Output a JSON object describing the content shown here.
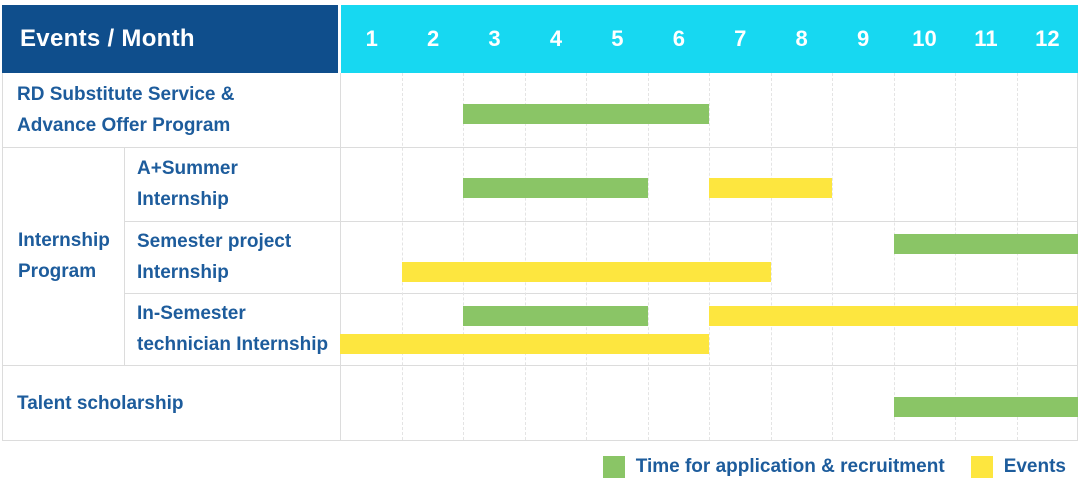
{
  "colors": {
    "header_bg": "#0f4e8c",
    "months_bg": "#17d8f1",
    "header_text": "#ffffff",
    "label_text": "#1d5c9c",
    "green": "#8ac566",
    "yellow": "#fde63f",
    "grid": "#e4e4e4",
    "border": "#dcdcdc"
  },
  "header": {
    "title": "Events / Month",
    "months": [
      "1",
      "2",
      "3",
      "4",
      "5",
      "6",
      "7",
      "8",
      "9",
      "10",
      "11",
      "12"
    ]
  },
  "group": {
    "label": "Internship\nProgram"
  },
  "rows": [
    {
      "label": "RD Substitute Service &\nAdvance Offer Program"
    },
    {
      "label": "A+Summer\nInternship"
    },
    {
      "label": "Semester project\nInternship"
    },
    {
      "label": "In-Semester\ntechnician Internship"
    },
    {
      "label": "Talent scholarship"
    }
  ],
  "legend": {
    "items": [
      {
        "label": "Time for application & recruitment",
        "color": "#8ac566"
      },
      {
        "label": "Events",
        "color": "#fde63f"
      }
    ]
  },
  "chart_data": {
    "type": "bar",
    "subtype": "gantt",
    "title": "Events / Month",
    "xlabel": "Month",
    "x_ticks": [
      1,
      2,
      3,
      4,
      5,
      6,
      7,
      8,
      9,
      10,
      11,
      12
    ],
    "x_range": [
      1,
      12
    ],
    "grid": "vertical-dashed",
    "legend_position": "bottom-right",
    "series_names": [
      "Time for application & recruitment",
      "Events"
    ],
    "rows": [
      {
        "event": "RD Substitute Service & Advance Offer Program",
        "group": null,
        "bars": [
          {
            "series": "Time for application & recruitment",
            "start_month": 3,
            "end_month": 6,
            "lane": 1
          }
        ]
      },
      {
        "event": "A+Summer Internship",
        "group": "Internship Program",
        "bars": [
          {
            "series": "Time for application & recruitment",
            "start_month": 3,
            "end_month": 5,
            "lane": 1
          },
          {
            "series": "Events",
            "start_month": 7,
            "end_month": 8,
            "lane": 1
          }
        ]
      },
      {
        "event": "Semester project Internship",
        "group": "Internship Program",
        "bars": [
          {
            "series": "Time for application & recruitment",
            "start_month": 10,
            "end_month": 12,
            "lane": 1
          },
          {
            "series": "Events",
            "start_month": 2,
            "end_month": 7,
            "lane": 2
          }
        ]
      },
      {
        "event": "In-Semester technician Internship",
        "group": "Internship Program",
        "bars": [
          {
            "series": "Time for application & recruitment",
            "start_month": 3,
            "end_month": 5,
            "lane": 1
          },
          {
            "series": "Events",
            "start_month": 7,
            "end_month": 12,
            "lane": 1
          },
          {
            "series": "Events",
            "start_month": 1,
            "end_month": 6,
            "lane": 2
          }
        ]
      },
      {
        "event": "Talent scholarship",
        "group": null,
        "bars": [
          {
            "series": "Time for application & recruitment",
            "start_month": 10,
            "end_month": 12,
            "lane": 1
          }
        ]
      }
    ]
  }
}
